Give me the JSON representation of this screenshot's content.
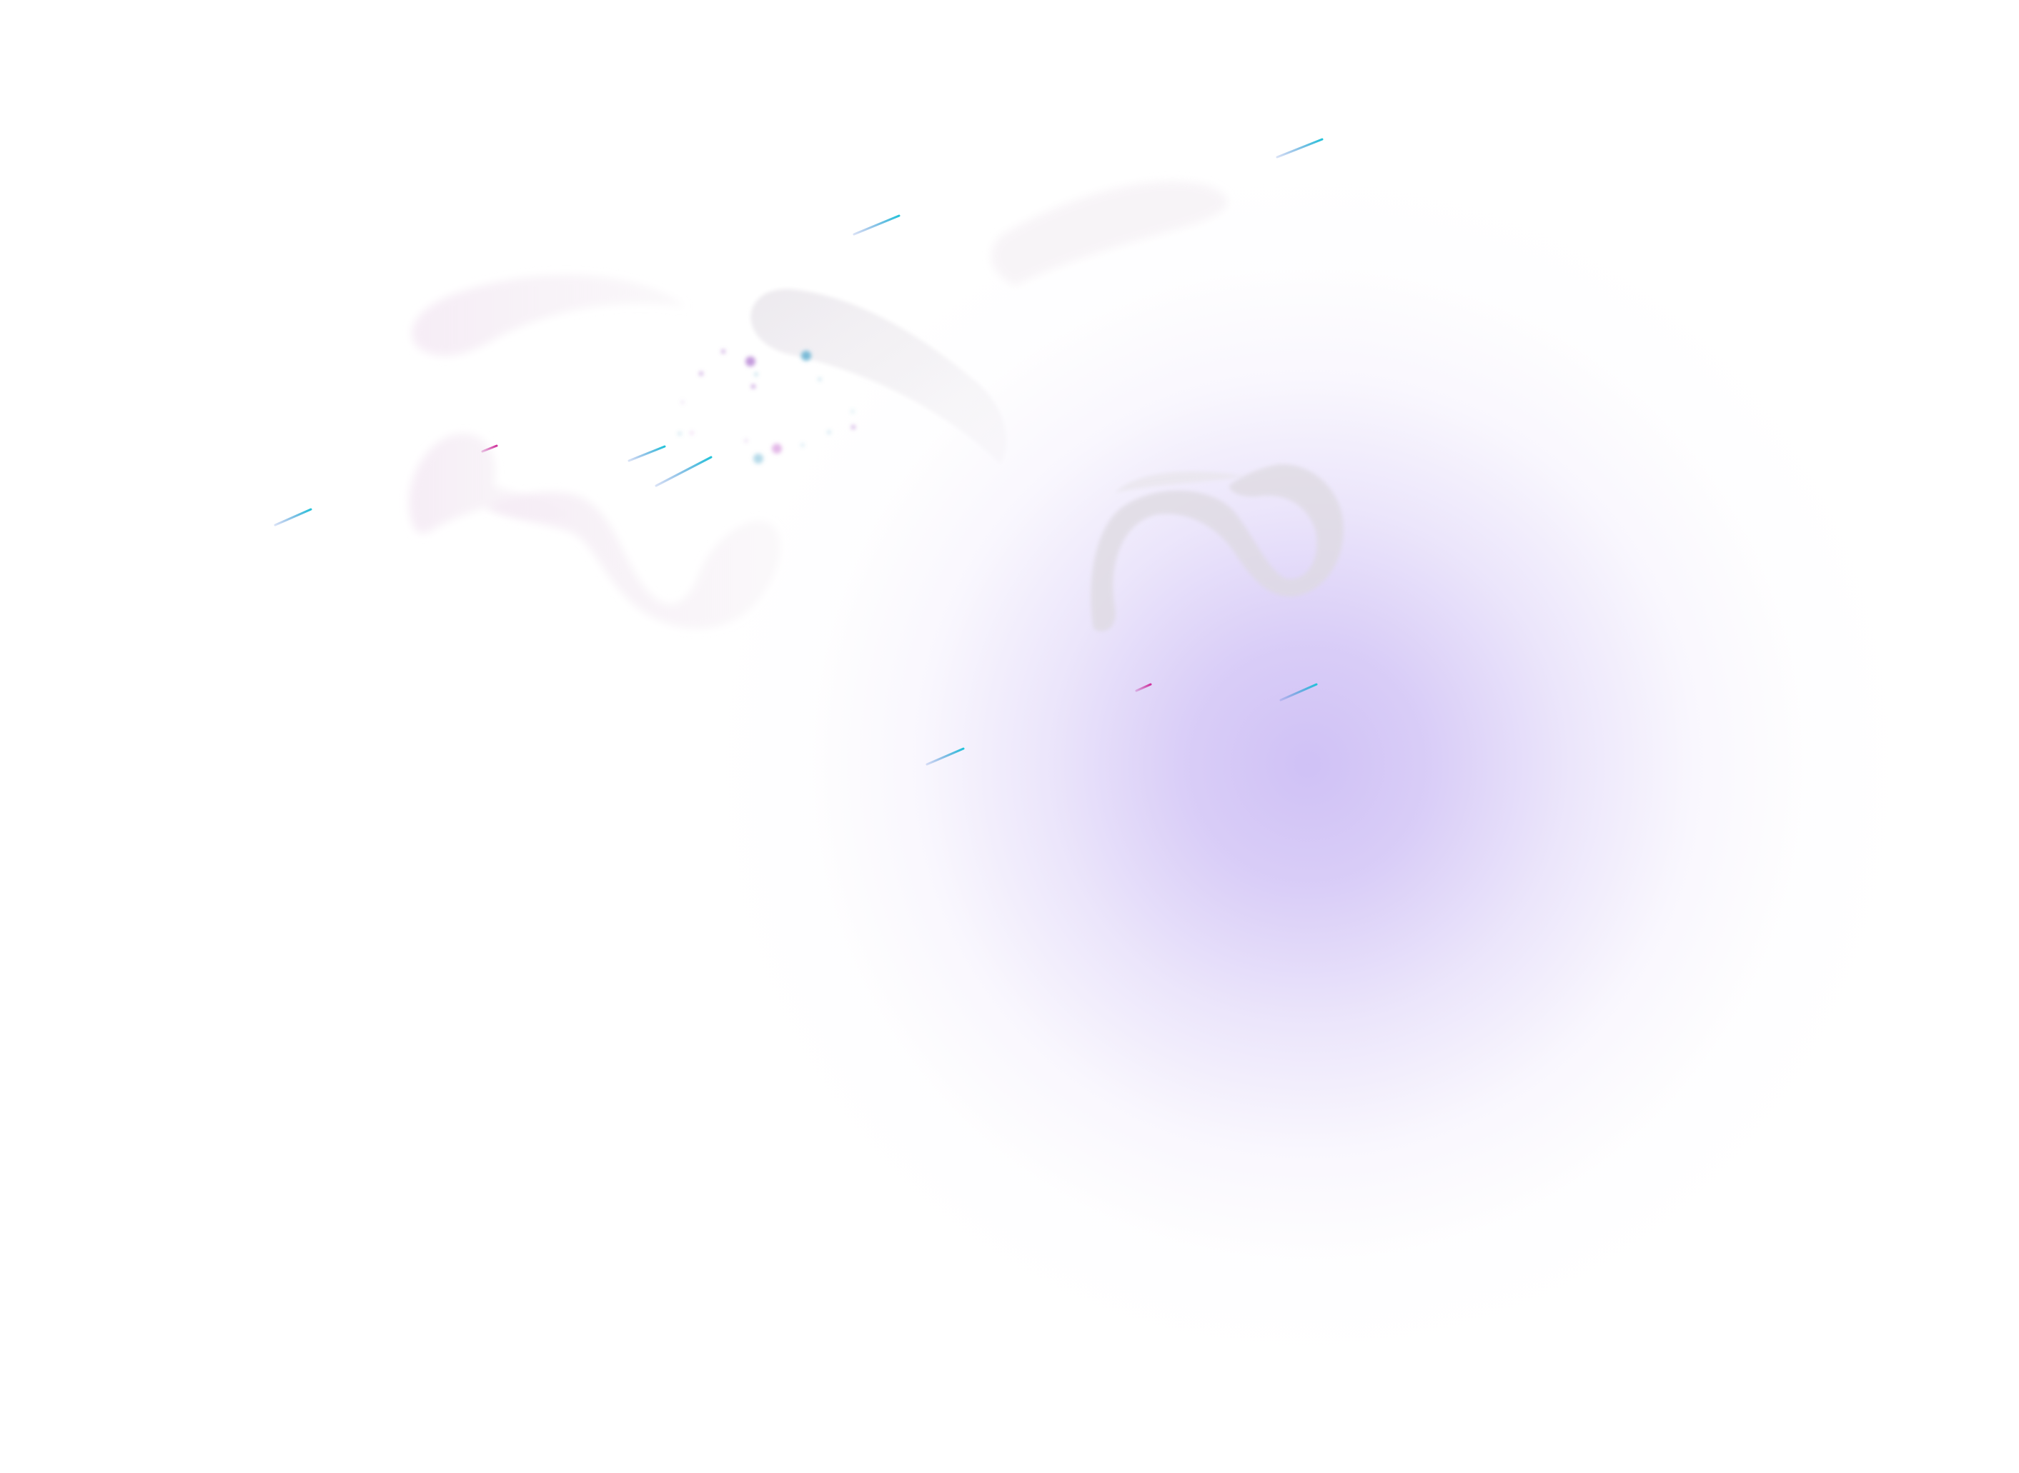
{
  "scene": {
    "description_free": true,
    "colors": {
      "background": "#ffffff",
      "glow": "#cdbef5",
      "swoosh_pink": "#f7eef8",
      "swoosh_gray": "#ebe8ee",
      "ribbon": "#d8d4dc",
      "streak_cyan": "#2aa6c9",
      "streak_blue": "#3a6fd0",
      "streak_magenta": "#c23aa8",
      "dot_purple": "#b07ad0",
      "dot_teal": "#5aaccf"
    },
    "icons": [
      "abstract-swoosh",
      "abstract-ribbon",
      "light-streak",
      "sparkle-dot"
    ]
  }
}
